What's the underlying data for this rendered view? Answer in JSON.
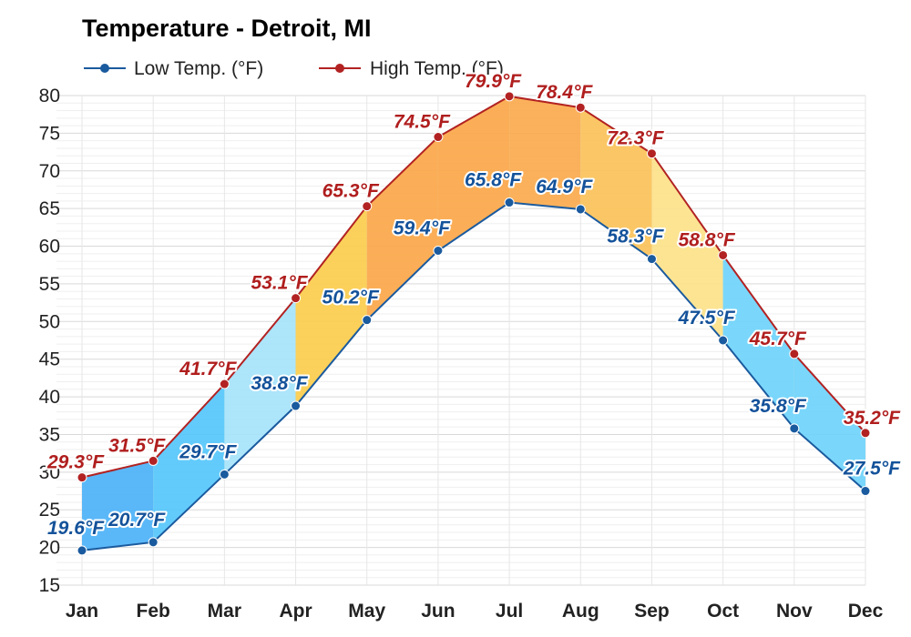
{
  "chart_data": {
    "type": "line",
    "title": "Temperature - Detroit, MI",
    "categories": [
      "Jan",
      "Feb",
      "Mar",
      "Apr",
      "May",
      "Jun",
      "Jul",
      "Aug",
      "Sep",
      "Oct",
      "Nov",
      "Dec"
    ],
    "series": [
      {
        "name": "Low Temp. (°F)",
        "color": "#1a5a9e",
        "values": [
          19.6,
          20.7,
          29.7,
          38.8,
          50.2,
          59.4,
          65.8,
          64.9,
          58.3,
          47.5,
          35.8,
          27.5
        ],
        "labels": [
          "19.6°F",
          "20.7°F",
          "29.7°F",
          "38.8°F",
          "50.2°F",
          "59.4°F",
          "65.8°F",
          "64.9°F",
          "58.3°F",
          "47.5°F",
          "35.8°F",
          "27.5°F"
        ]
      },
      {
        "name": "High Temp. (°F)",
        "color": "#b22222",
        "values": [
          29.3,
          31.5,
          41.7,
          53.1,
          65.3,
          74.5,
          79.9,
          78.4,
          72.3,
          58.8,
          45.7,
          35.2
        ],
        "labels": [
          "29.3°F",
          "31.5°F",
          "41.7°F",
          "53.1°F",
          "65.3°F",
          "74.5°F",
          "79.9°F",
          "78.4°F",
          "72.3°F",
          "58.8°F",
          "45.7°F",
          "35.2°F"
        ]
      }
    ],
    "band_fill_colors": [
      "#4db2f7",
      "#55c7fb",
      "#a6e3fb",
      "#fbcd4d",
      "#fba749",
      "#fba749",
      "#fbaa4d",
      "#fbc259",
      "#fce28a",
      "#6fd4fb",
      "#6fd4fb",
      "#55c7fb"
    ],
    "yticks": [
      15,
      20,
      25,
      30,
      35,
      40,
      45,
      50,
      55,
      60,
      65,
      70,
      75,
      80
    ],
    "ylim": [
      15,
      80
    ],
    "xlabel": "",
    "ylabel": "",
    "grid": true,
    "legend_position": "top-left"
  }
}
